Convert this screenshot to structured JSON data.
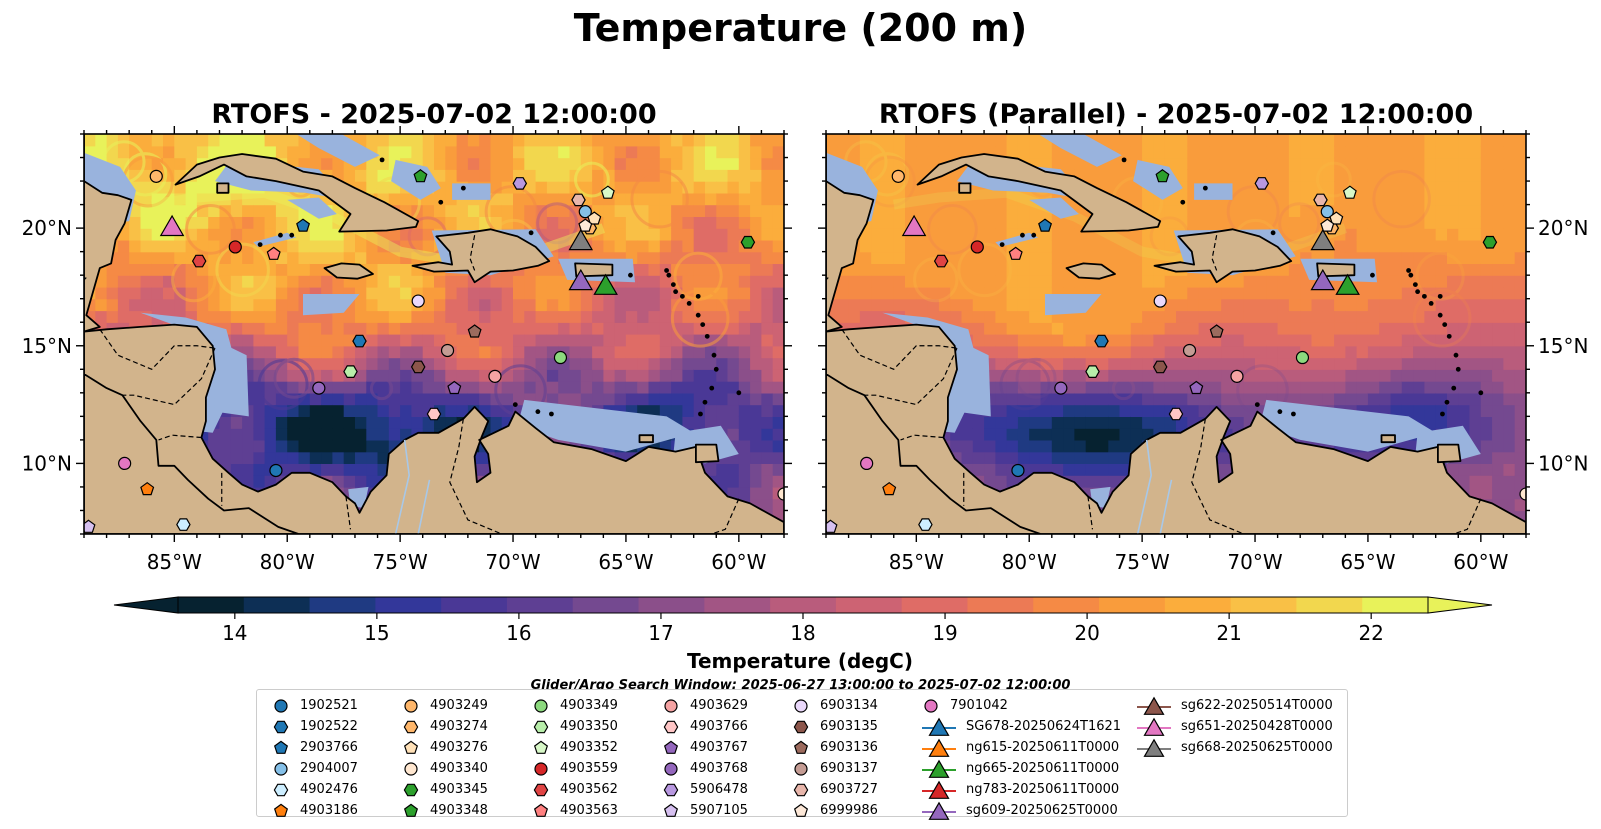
{
  "figure": {
    "title": "Temperature (200 m)",
    "panels": [
      {
        "title": "RTOFS - 2025-07-02 12:00:00"
      },
      {
        "title": "RTOFS (Parallel) - 2025-07-02 12:00:00"
      }
    ],
    "search_window": "Glider/Argo Search Window: 2025-06-27 13:00:00 to 2025-07-02 12:00:00",
    "colors": {
      "land": "#d2b48c",
      "shallow_water": "#99b3dd",
      "colormap": [
        "#062230",
        "#0d2f55",
        "#1f3a82",
        "#33379a",
        "#4a3896",
        "#5e3f93",
        "#744990",
        "#8b4f8a",
        "#a25584",
        "#b95c7c",
        "#cd6373",
        "#df6c66",
        "#ec7a55",
        "#f58a45",
        "#f99c3c",
        "#fbad3c",
        "#f9c046",
        "#f2d74e",
        "#e8f25a"
      ]
    }
  },
  "chart_data": [
    {
      "type": "heatmap",
      "title": "RTOFS - 2025-07-02 12:00:00",
      "x_ticks": [
        "85°W",
        "80°W",
        "75°W",
        "70°W",
        "65°W",
        "60°W"
      ],
      "y_ticks": [
        "20°N",
        "15°N",
        "10°N"
      ],
      "lon_range": [
        -89,
        -58
      ],
      "lat_range": [
        7,
        24
      ],
      "tick_lon": [
        -85,
        -80,
        -75,
        -70,
        -65,
        -60
      ],
      "tick_lat": [
        20,
        15,
        10
      ],
      "grid": false
    },
    {
      "type": "heatmap",
      "title": "RTOFS (Parallel) - 2025-07-02 12:00:00",
      "x_ticks": [
        "85°W",
        "80°W",
        "75°W",
        "70°W",
        "65°W",
        "60°W"
      ],
      "y_ticks": [
        "20°N",
        "15°N",
        "10°N"
      ],
      "lon_range": [
        -89,
        -58
      ],
      "lat_range": [
        7,
        24
      ],
      "tick_lon": [
        -85,
        -80,
        -75,
        -70,
        -65,
        -60
      ],
      "tick_lat": [
        20,
        15,
        10
      ],
      "grid": false
    }
  ],
  "colorbar": {
    "label": "Temperature (degC)",
    "ticks": [
      "14",
      "15",
      "16",
      "17",
      "18",
      "19",
      "20",
      "21",
      "22"
    ],
    "tick_values": [
      14,
      15,
      16,
      17,
      18,
      19,
      20,
      21,
      22
    ],
    "range": [
      13.6,
      22.4
    ],
    "extend": "both"
  },
  "observations": [
    {
      "id": "1902521",
      "marker": "circle",
      "color": "#1f77b4",
      "lon": -80.5,
      "lat": 9.7
    },
    {
      "id": "1902522",
      "marker": "hexagon",
      "color": "#1f77b4",
      "lon": -76.8,
      "lat": 15.2
    },
    {
      "id": "2903766",
      "marker": "pentagon",
      "color": "#1f77b4",
      "lon": -79.3,
      "lat": 20.1
    },
    {
      "id": "2904007",
      "marker": "circle",
      "color": "#85c0e8",
      "lon": -66.8,
      "lat": 20.7
    },
    {
      "id": "4902476",
      "marker": "hexagon",
      "color": "#cdeeff",
      "lon": -84.6,
      "lat": 7.4
    },
    {
      "id": "4903186",
      "marker": "pentagon",
      "color": "#ff7f0e",
      "lon": -86.2,
      "lat": 8.9
    },
    {
      "id": "4903249",
      "marker": "circle",
      "color": "#ffb76b",
      "lon": -85.8,
      "lat": 22.2
    },
    {
      "id": "4903274",
      "marker": "hexagon",
      "color": "#ffb76b",
      "lon": -66.6,
      "lat": 20.0
    },
    {
      "id": "4903276",
      "marker": "pentagon",
      "color": "#ffe1b8",
      "lon": -66.4,
      "lat": 20.4
    },
    {
      "id": "4903340",
      "marker": "circle",
      "color": "#ffe7d0",
      "lon": -58.0,
      "lat": 8.7
    },
    {
      "id": "4903345",
      "marker": "hexagon",
      "color": "#2ca02c",
      "lon": -59.6,
      "lat": 19.4
    },
    {
      "id": "4903348",
      "marker": "pentagon",
      "color": "#2ca02c",
      "lon": -74.1,
      "lat": 22.2
    },
    {
      "id": "4903349",
      "marker": "circle",
      "color": "#8cd97e",
      "lon": -67.9,
      "lat": 14.5
    },
    {
      "id": "4903350",
      "marker": "hexagon",
      "color": "#b8eeaa",
      "lon": -77.2,
      "lat": 13.9
    },
    {
      "id": "4903352",
      "marker": "pentagon",
      "color": "#d8f8c8",
      "lon": -65.8,
      "lat": 21.5
    },
    {
      "id": "4903559",
      "marker": "circle",
      "color": "#d62728",
      "lon": -82.3,
      "lat": 19.2
    },
    {
      "id": "4903562",
      "marker": "hexagon",
      "color": "#e04444",
      "lon": -83.9,
      "lat": 18.6
    },
    {
      "id": "4903563",
      "marker": "pentagon",
      "color": "#ff8080",
      "lon": -80.6,
      "lat": 18.9
    },
    {
      "id": "4903629",
      "marker": "circle",
      "color": "#f5a3a3",
      "lon": -70.8,
      "lat": 13.7
    },
    {
      "id": "4903766",
      "marker": "hexagon",
      "color": "#ffc6c6",
      "lon": -73.5,
      "lat": 12.1
    },
    {
      "id": "4903767",
      "marker": "pentagon",
      "color": "#9467bd",
      "lon": -72.6,
      "lat": 13.2
    },
    {
      "id": "4903768",
      "marker": "circle",
      "color": "#9467bd",
      "lon": -78.6,
      "lat": 13.2
    },
    {
      "id": "5906478",
      "marker": "hexagon",
      "color": "#b898e0",
      "lon": -69.7,
      "lat": 21.9
    },
    {
      "id": "5907105",
      "marker": "pentagon",
      "color": "#d6c0f0",
      "lon": -88.8,
      "lat": 7.3
    },
    {
      "id": "6903134",
      "marker": "circle",
      "color": "#ead8fb",
      "lon": -74.2,
      "lat": 16.9
    },
    {
      "id": "6903135",
      "marker": "hexagon",
      "color": "#8c564b",
      "lon": -74.2,
      "lat": 14.1
    },
    {
      "id": "6903136",
      "marker": "pentagon",
      "color": "#9c6b5e",
      "lon": -71.7,
      "lat": 15.6
    },
    {
      "id": "6903137",
      "marker": "circle",
      "color": "#c49c94",
      "lon": -72.9,
      "lat": 14.8
    },
    {
      "id": "6903727",
      "marker": "hexagon",
      "color": "#e8b6ab",
      "lon": -67.1,
      "lat": 21.2
    },
    {
      "id": "6999986",
      "marker": "pentagon",
      "color": "#fde8d8",
      "lon": -66.8,
      "lat": 20.1
    },
    {
      "id": "7901042",
      "marker": "circle",
      "color": "#e377c2",
      "lon": -87.2,
      "lat": 10.0
    },
    {
      "id": "SG678-20250624T1621",
      "marker": "triangle",
      "color": "#1f77b4",
      "line": true
    },
    {
      "id": "ng615-20250611T0000",
      "marker": "triangle",
      "color": "#ff7f0e",
      "line": true
    },
    {
      "id": "ng665-20250611T0000",
      "marker": "triangle",
      "color": "#2ca02c",
      "line": true,
      "lon": -65.9,
      "lat": 17.6
    },
    {
      "id": "ng783-20250611T0000",
      "marker": "triangle",
      "color": "#d62728",
      "line": true
    },
    {
      "id": "sg609-20250625T0000",
      "marker": "triangle",
      "color": "#9467bd",
      "line": true,
      "lon": -67.0,
      "lat": 17.8
    },
    {
      "id": "sg622-20250514T0000",
      "marker": "triangle",
      "color": "#8c564b",
      "line": true
    },
    {
      "id": "sg651-20250428T0000",
      "marker": "triangle",
      "color": "#e377c2",
      "line": true,
      "lon": -85.1,
      "lat": 20.1
    },
    {
      "id": "sg668-20250625T0000",
      "marker": "triangle",
      "color": "#7f7f7f",
      "line": true,
      "lon": -67.0,
      "lat": 19.5
    }
  ]
}
